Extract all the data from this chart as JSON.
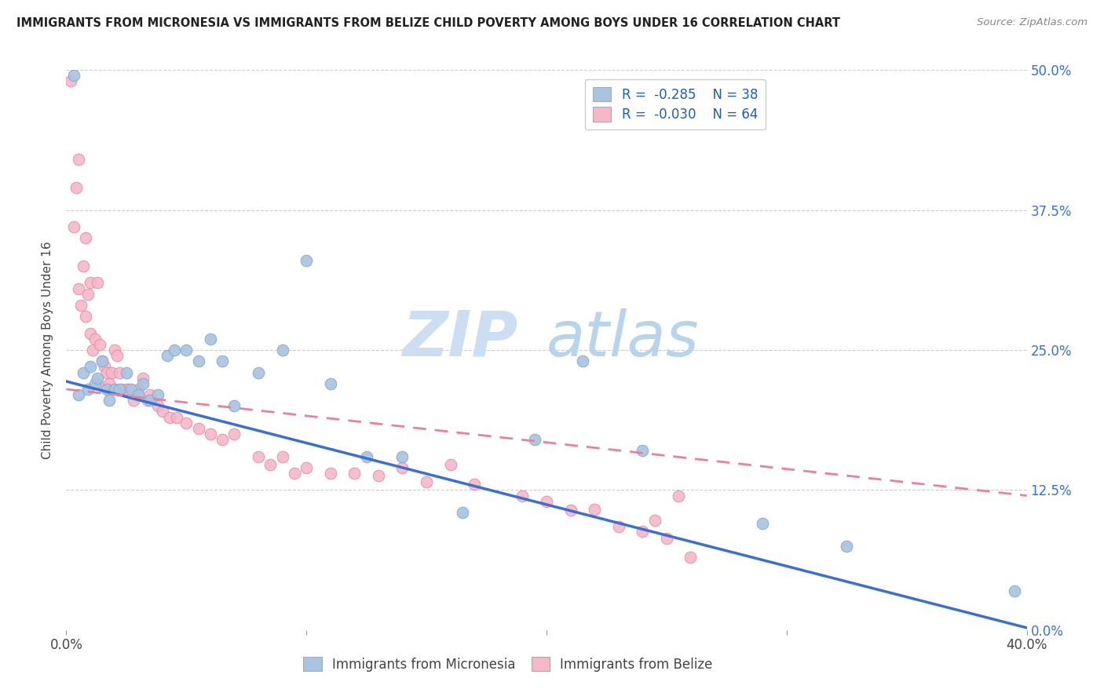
{
  "title": "IMMIGRANTS FROM MICRONESIA VS IMMIGRANTS FROM BELIZE CHILD POVERTY AMONG BOYS UNDER 16 CORRELATION CHART",
  "source": "Source: ZipAtlas.com",
  "ylabel": "Child Poverty Among Boys Under 16",
  "xlim": [
    0.0,
    0.4
  ],
  "ylim": [
    0.0,
    0.5
  ],
  "xticks": [
    0.0,
    0.1,
    0.2,
    0.3,
    0.4
  ],
  "xtick_labels": [
    "0.0%",
    "",
    "",
    "",
    "40.0%"
  ],
  "ytick_labels_right": [
    "0.0%",
    "12.5%",
    "25.0%",
    "37.5%",
    "50.0%"
  ],
  "yticks": [
    0.0,
    0.125,
    0.25,
    0.375,
    0.5
  ],
  "micronesia_color": "#a8c4e0",
  "belize_color": "#f4b8c8",
  "micronesia_line_color": "#3b6fd4",
  "belize_line_color": "#e8829a",
  "legend_R_micronesia": "-0.285",
  "legend_N_micronesia": "38",
  "legend_R_belize": "-0.030",
  "legend_N_belize": "64",
  "watermark_zip": "ZIP",
  "watermark_atlas": "atlas",
  "micronesia_x": [
    0.003,
    0.005,
    0.007,
    0.009,
    0.01,
    0.012,
    0.013,
    0.015,
    0.017,
    0.018,
    0.02,
    0.022,
    0.025,
    0.027,
    0.03,
    0.032,
    0.035,
    0.038,
    0.042,
    0.045,
    0.05,
    0.055,
    0.06,
    0.065,
    0.07,
    0.08,
    0.09,
    0.1,
    0.11,
    0.125,
    0.14,
    0.165,
    0.195,
    0.215,
    0.24,
    0.29,
    0.325,
    0.395
  ],
  "micronesia_y": [
    0.495,
    0.21,
    0.23,
    0.215,
    0.235,
    0.22,
    0.225,
    0.24,
    0.215,
    0.205,
    0.215,
    0.215,
    0.23,
    0.215,
    0.21,
    0.22,
    0.205,
    0.21,
    0.245,
    0.25,
    0.25,
    0.24,
    0.26,
    0.24,
    0.2,
    0.23,
    0.25,
    0.33,
    0.22,
    0.155,
    0.155,
    0.105,
    0.17,
    0.24,
    0.16,
    0.095,
    0.075,
    0.035
  ],
  "belize_x": [
    0.002,
    0.003,
    0.004,
    0.005,
    0.005,
    0.006,
    0.007,
    0.008,
    0.008,
    0.009,
    0.01,
    0.01,
    0.011,
    0.012,
    0.013,
    0.013,
    0.014,
    0.015,
    0.016,
    0.017,
    0.018,
    0.019,
    0.02,
    0.021,
    0.022,
    0.023,
    0.025,
    0.026,
    0.028,
    0.03,
    0.032,
    0.034,
    0.035,
    0.038,
    0.04,
    0.043,
    0.046,
    0.05,
    0.055,
    0.06,
    0.065,
    0.07,
    0.08,
    0.085,
    0.09,
    0.095,
    0.1,
    0.11,
    0.12,
    0.13,
    0.14,
    0.15,
    0.16,
    0.17,
    0.19,
    0.2,
    0.21,
    0.22,
    0.23,
    0.24,
    0.245,
    0.25,
    0.255,
    0.26
  ],
  "belize_y": [
    0.49,
    0.36,
    0.395,
    0.305,
    0.42,
    0.29,
    0.325,
    0.28,
    0.35,
    0.3,
    0.265,
    0.31,
    0.25,
    0.26,
    0.22,
    0.31,
    0.255,
    0.24,
    0.235,
    0.23,
    0.22,
    0.23,
    0.25,
    0.245,
    0.23,
    0.215,
    0.215,
    0.215,
    0.205,
    0.215,
    0.225,
    0.205,
    0.21,
    0.2,
    0.195,
    0.19,
    0.19,
    0.185,
    0.18,
    0.175,
    0.17,
    0.175,
    0.155,
    0.148,
    0.155,
    0.14,
    0.145,
    0.14,
    0.14,
    0.138,
    0.145,
    0.132,
    0.148,
    0.13,
    0.12,
    0.115,
    0.107,
    0.108,
    0.092,
    0.088,
    0.098,
    0.082,
    0.12,
    0.065
  ],
  "mic_line_x0": 0.0,
  "mic_line_x1": 0.4,
  "mic_line_y0": 0.222,
  "mic_line_y1": 0.002,
  "bel_line_x0": 0.0,
  "bel_line_x1": 0.4,
  "bel_line_y0": 0.215,
  "bel_line_y1": 0.12
}
